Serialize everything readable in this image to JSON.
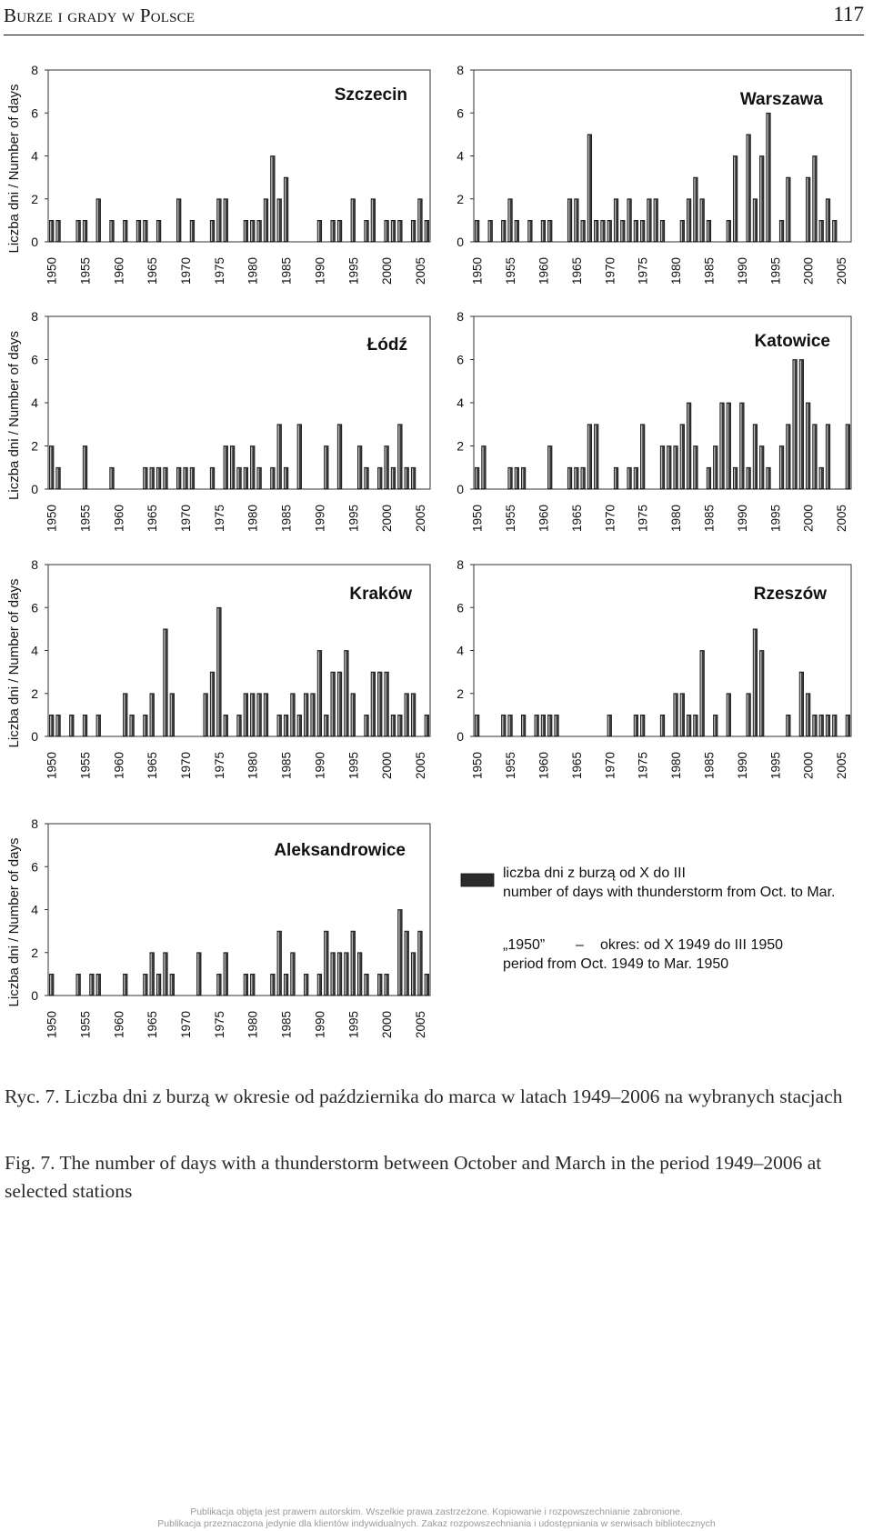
{
  "header": {
    "running_title": "Burze i grady w Polsce",
    "page_number": "117"
  },
  "chart_data": [
    {
      "type": "bar",
      "title": "Szczecin",
      "ylabel": "Liczba dni / Number of days",
      "ylim": [
        0,
        8
      ],
      "yticks": [
        0,
        2,
        4,
        6,
        8
      ],
      "xticks": [
        1950,
        1955,
        1960,
        1965,
        1970,
        1975,
        1980,
        1985,
        1990,
        1995,
        2000,
        2005
      ],
      "x_range": [
        1950,
        2006
      ],
      "x": [
        1950,
        1951,
        1954,
        1955,
        1957,
        1959,
        1961,
        1963,
        1964,
        1966,
        1969,
        1971,
        1974,
        1975,
        1976,
        1979,
        1980,
        1981,
        1982,
        1983,
        1984,
        1985,
        1990,
        1992,
        1993,
        1995,
        1997,
        1998,
        2000,
        2001,
        2002,
        2004,
        2005,
        2006
      ],
      "values": [
        1,
        1,
        1,
        1,
        2,
        1,
        1,
        1,
        1,
        1,
        2,
        1,
        1,
        2,
        2,
        1,
        1,
        1,
        2,
        4,
        2,
        3,
        1,
        1,
        1,
        2,
        1,
        2,
        1,
        1,
        1,
        1,
        2,
        1
      ]
    },
    {
      "type": "bar",
      "title": "Warszawa",
      "ylabel": "Liczba dni / Number of days",
      "ylim": [
        0,
        8
      ],
      "yticks": [
        0,
        2,
        4,
        6,
        8
      ],
      "xticks": [
        1950,
        1955,
        1960,
        1965,
        1970,
        1975,
        1980,
        1985,
        1990,
        1995,
        2000,
        2005
      ],
      "x_range": [
        1950,
        2006
      ],
      "x": [
        1950,
        1952,
        1954,
        1955,
        1956,
        1958,
        1960,
        1961,
        1964,
        1965,
        1966,
        1967,
        1968,
        1969,
        1970,
        1971,
        1972,
        1973,
        1974,
        1975,
        1976,
        1977,
        1978,
        1981,
        1982,
        1983,
        1984,
        1985,
        1988,
        1989,
        1991,
        1992,
        1993,
        1994,
        1996,
        1997,
        2000,
        2001,
        2002,
        2003,
        2004
      ],
      "values": [
        1,
        1,
        1,
        2,
        1,
        1,
        1,
        1,
        2,
        2,
        1,
        5,
        1,
        1,
        1,
        2,
        1,
        2,
        1,
        1,
        2,
        2,
        1,
        1,
        2,
        3,
        2,
        1,
        1,
        4,
        5,
        2,
        4,
        6,
        1,
        3,
        3,
        4,
        1,
        2,
        1
      ]
    },
    {
      "type": "bar",
      "title": "Łódź",
      "ylabel": "Liczba dni / Number of days",
      "ylim": [
        0,
        8
      ],
      "yticks": [
        0,
        2,
        4,
        6,
        8
      ],
      "xticks": [
        1950,
        1955,
        1960,
        1965,
        1970,
        1975,
        1980,
        1985,
        1990,
        1995,
        2000,
        2005
      ],
      "x_range": [
        1950,
        2006
      ],
      "x": [
        1950,
        1951,
        1955,
        1959,
        1964,
        1965,
        1966,
        1967,
        1969,
        1970,
        1971,
        1974,
        1976,
        1977,
        1978,
        1979,
        1980,
        1981,
        1983,
        1984,
        1985,
        1987,
        1991,
        1993,
        1996,
        1997,
        1999,
        2000,
        2001,
        2002,
        2003,
        2004
      ],
      "values": [
        2,
        1,
        2,
        1,
        1,
        1,
        1,
        1,
        1,
        1,
        1,
        1,
        2,
        2,
        1,
        1,
        2,
        1,
        1,
        3,
        1,
        3,
        2,
        3,
        2,
        1,
        1,
        2,
        1,
        3,
        1,
        1
      ]
    },
    {
      "type": "bar",
      "title": "Katowice",
      "ylabel": "Liczba dni / Number of days",
      "ylim": [
        0,
        8
      ],
      "yticks": [
        0,
        2,
        4,
        6,
        8
      ],
      "xticks": [
        1950,
        1955,
        1960,
        1965,
        1970,
        1975,
        1980,
        1985,
        1990,
        1995,
        2000,
        2005
      ],
      "x_range": [
        1950,
        2006
      ],
      "x": [
        1950,
        1951,
        1955,
        1956,
        1957,
        1961,
        1964,
        1965,
        1966,
        1967,
        1968,
        1971,
        1973,
        1974,
        1975,
        1978,
        1979,
        1980,
        1981,
        1982,
        1983,
        1985,
        1986,
        1987,
        1988,
        1989,
        1990,
        1991,
        1992,
        1993,
        1994,
        1996,
        1997,
        1998,
        1999,
        2000,
        2001,
        2002,
        2003,
        2006
      ],
      "values": [
        1,
        2,
        1,
        1,
        1,
        2,
        1,
        1,
        1,
        3,
        3,
        1,
        1,
        1,
        3,
        2,
        2,
        2,
        3,
        4,
        2,
        1,
        2,
        4,
        4,
        1,
        4,
        1,
        3,
        2,
        1,
        2,
        3,
        6,
        6,
        4,
        3,
        1,
        3,
        3
      ]
    },
    {
      "type": "bar",
      "title": "Kraków",
      "ylabel": "Liczba dni / Number of days",
      "ylim": [
        0,
        8
      ],
      "yticks": [
        0,
        2,
        4,
        6,
        8
      ],
      "xticks": [
        1950,
        1955,
        1960,
        1965,
        1970,
        1975,
        1980,
        1985,
        1990,
        1995,
        2000,
        2005
      ],
      "x_range": [
        1950,
        2006
      ],
      "x": [
        1950,
        1951,
        1953,
        1955,
        1957,
        1961,
        1962,
        1964,
        1965,
        1967,
        1968,
        1973,
        1974,
        1975,
        1976,
        1978,
        1979,
        1980,
        1981,
        1982,
        1984,
        1985,
        1986,
        1987,
        1988,
        1989,
        1990,
        1991,
        1992,
        1993,
        1994,
        1995,
        1997,
        1998,
        1999,
        2000,
        2001,
        2002,
        2003,
        2004,
        2006
      ],
      "values": [
        1,
        1,
        1,
        1,
        1,
        2,
        1,
        1,
        2,
        5,
        2,
        2,
        3,
        6,
        1,
        1,
        2,
        2,
        2,
        2,
        1,
        1,
        2,
        1,
        2,
        2,
        4,
        1,
        3,
        3,
        4,
        2,
        1,
        3,
        3,
        3,
        1,
        1,
        2,
        2,
        1
      ]
    },
    {
      "type": "bar",
      "title": "Rzeszów",
      "ylabel": "Liczba dni / Number of days",
      "ylim": [
        0,
        8
      ],
      "yticks": [
        0,
        2,
        4,
        6,
        8
      ],
      "xticks": [
        1950,
        1955,
        1960,
        1965,
        1970,
        1975,
        1980,
        1985,
        1990,
        1995,
        2000,
        2005
      ],
      "x_range": [
        1950,
        2006
      ],
      "x": [
        1950,
        1954,
        1955,
        1957,
        1959,
        1960,
        1961,
        1962,
        1970,
        1974,
        1975,
        1978,
        1980,
        1981,
        1982,
        1983,
        1984,
        1986,
        1988,
        1991,
        1992,
        1993,
        1997,
        1999,
        2000,
        2001,
        2002,
        2003,
        2004,
        2006
      ],
      "values": [
        1,
        1,
        1,
        1,
        1,
        1,
        1,
        1,
        1,
        1,
        1,
        1,
        2,
        2,
        1,
        1,
        4,
        1,
        2,
        2,
        5,
        4,
        1,
        3,
        2,
        1,
        1,
        1,
        1,
        1
      ]
    },
    {
      "type": "bar",
      "title": "Aleksandrowice",
      "ylabel": "Liczba dni / Number of days",
      "ylim": [
        0,
        8
      ],
      "yticks": [
        0,
        2,
        4,
        6,
        8
      ],
      "xticks": [
        1950,
        1955,
        1960,
        1965,
        1970,
        1975,
        1980,
        1985,
        1990,
        1995,
        2000,
        2005
      ],
      "x_range": [
        1950,
        2006
      ],
      "x": [
        1950,
        1954,
        1956,
        1957,
        1961,
        1964,
        1965,
        1966,
        1967,
        1968,
        1972,
        1975,
        1976,
        1979,
        1980,
        1983,
        1984,
        1985,
        1986,
        1988,
        1990,
        1991,
        1992,
        1993,
        1994,
        1995,
        1996,
        1997,
        1999,
        2000,
        2002,
        2003,
        2004,
        2005,
        2006
      ],
      "values": [
        1,
        1,
        1,
        1,
        1,
        1,
        2,
        1,
        2,
        1,
        2,
        1,
        2,
        1,
        1,
        1,
        3,
        1,
        2,
        1,
        1,
        3,
        2,
        2,
        2,
        3,
        2,
        1,
        1,
        1,
        4,
        3,
        2,
        3,
        1
      ]
    }
  ],
  "legend": {
    "series_pl": "liczba dni z burzą od X do III",
    "series_en": "number of days with thunderstorm from Oct. to Mar.",
    "series_color": "#2b2b2b",
    "note_year": "„1950”",
    "note_dash": "–",
    "note_pl": "okres:   od X 1949 do III 1950",
    "note_en": "period from Oct. 1949 to Mar. 1950"
  },
  "caption": {
    "pl": "Ryc. 7. Liczba dni z burzą w okresie od października do marca w latach 1949–2006 na wybranych stacjach",
    "en": "Fig. 7. The number of days with a thunderstorm between October and March in the period 1949–2006 at selected stations"
  },
  "footer": {
    "line1": "Publikacja objęta jest prawem autorskim. Wszelkie prawa zastrzeżone. Kopiowanie i rozpowszechnianie zabronione.",
    "line2": "Publikacja przeznaczona jedynie dla klientów indywidualnych. Zakaz rozpowszechniania i udostępniania w serwisach bibliotecznych"
  }
}
